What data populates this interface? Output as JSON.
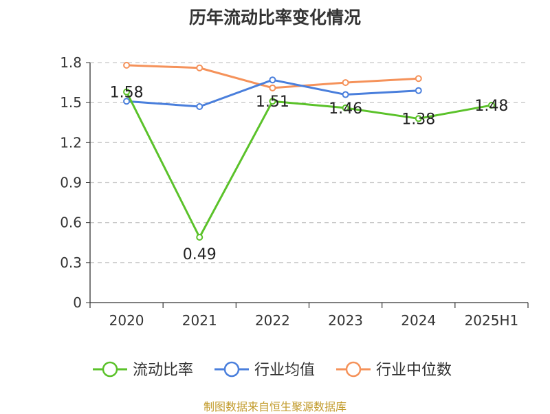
{
  "chart_data": {
    "type": "line",
    "title": "历年流动比率变化情况",
    "categories": [
      "2020",
      "2021",
      "2022",
      "2023",
      "2024",
      "2025H1"
    ],
    "ylim": [
      0,
      1.8
    ],
    "yticks": [
      "0",
      "0.3",
      "0.6",
      "0.9",
      "1.2",
      "1.5",
      "1.8"
    ],
    "grid": "horizontal-dashed",
    "legend_position": "bottom",
    "series": [
      {
        "name": "流动比率",
        "color": "#5bc22a",
        "values": [
          1.58,
          0.49,
          1.51,
          1.46,
          1.38,
          1.48
        ],
        "labels": [
          "1.58",
          "0.49",
          "1.51",
          "1.46",
          "1.38",
          "1.48"
        ]
      },
      {
        "name": "行业均值",
        "color": "#4a7fdc",
        "values": [
          1.51,
          1.47,
          1.67,
          1.56,
          1.59,
          null
        ]
      },
      {
        "name": "行业中位数",
        "color": "#f5925a",
        "values": [
          1.78,
          1.76,
          1.61,
          1.65,
          1.68,
          null
        ]
      }
    ]
  },
  "footer": {
    "source": "制图数据来自恒生聚源数据库"
  }
}
